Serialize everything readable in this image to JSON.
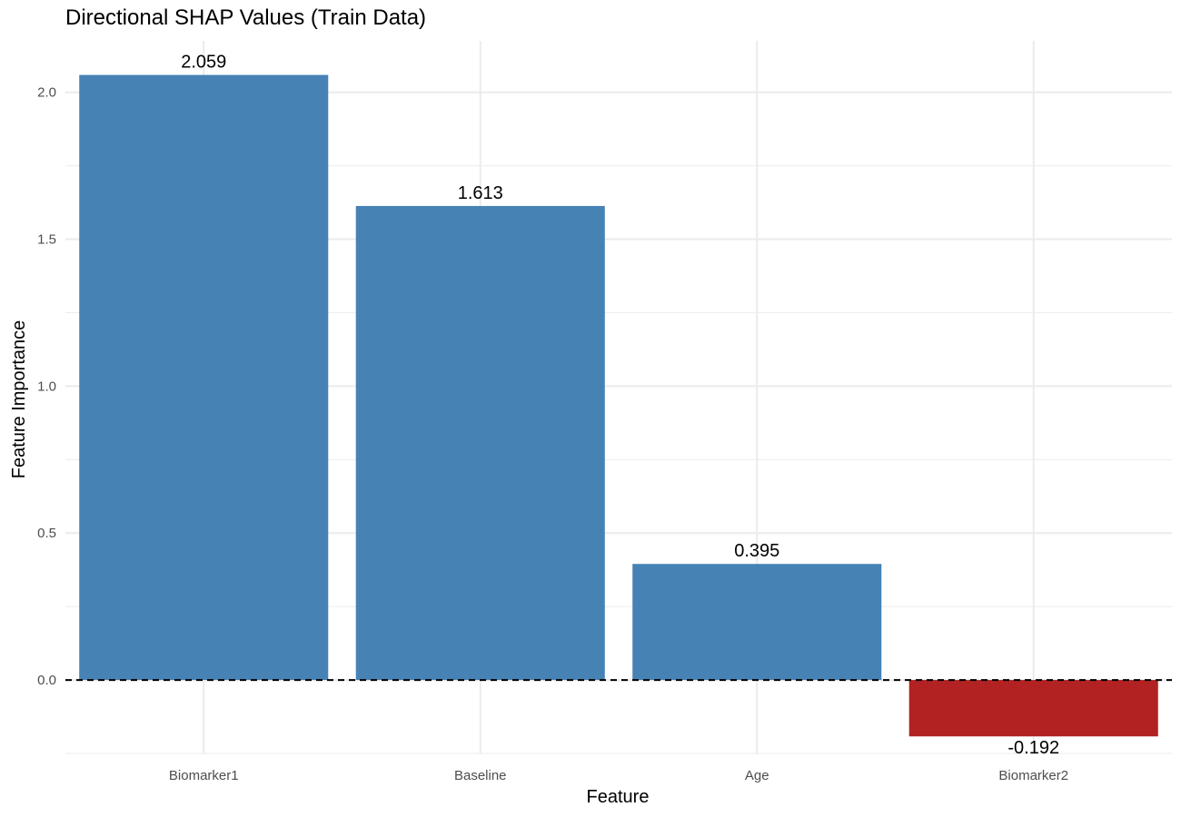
{
  "chart_data": {
    "type": "bar",
    "title": "Directional SHAP Values (Train Data)",
    "xlabel": "Feature",
    "ylabel": "Feature Importance",
    "categories": [
      "Biomarker1",
      "Baseline",
      "Age",
      "Biomarker2"
    ],
    "values": [
      2.059,
      1.613,
      0.395,
      -0.192
    ],
    "data_labels": [
      "2.059",
      "1.613",
      "0.395",
      "-0.192"
    ],
    "y_ticks": [
      0.0,
      0.5,
      1.0,
      1.5,
      2.0
    ],
    "y_tick_labels": [
      "0.0",
      "0.5",
      "1.0",
      "1.5",
      "2.0"
    ],
    "ylim": [
      -0.25,
      2.175
    ],
    "grid": true,
    "legend": "none",
    "reference_line": {
      "y": 0,
      "style": "dashed"
    },
    "colors": {
      "positive": "#4682b4",
      "negative": "#b22222",
      "grid": "#ebebeb",
      "reference": "#000000"
    }
  }
}
